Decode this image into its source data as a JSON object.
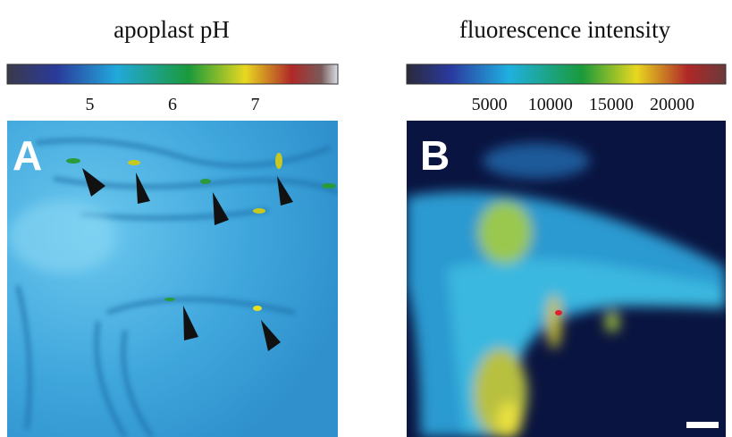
{
  "panels": [
    {
      "title": "apoplast pH",
      "label": "A",
      "colorbar": {
        "range": [
          4,
          8
        ],
        "ticks": [
          5,
          6,
          7
        ]
      }
    },
    {
      "title": "fluorescence intensity",
      "label": "B",
      "colorbar": {
        "range": [
          -1800,
          24400
        ],
        "ticks": [
          5000,
          10000,
          15000,
          20000
        ]
      }
    }
  ]
}
